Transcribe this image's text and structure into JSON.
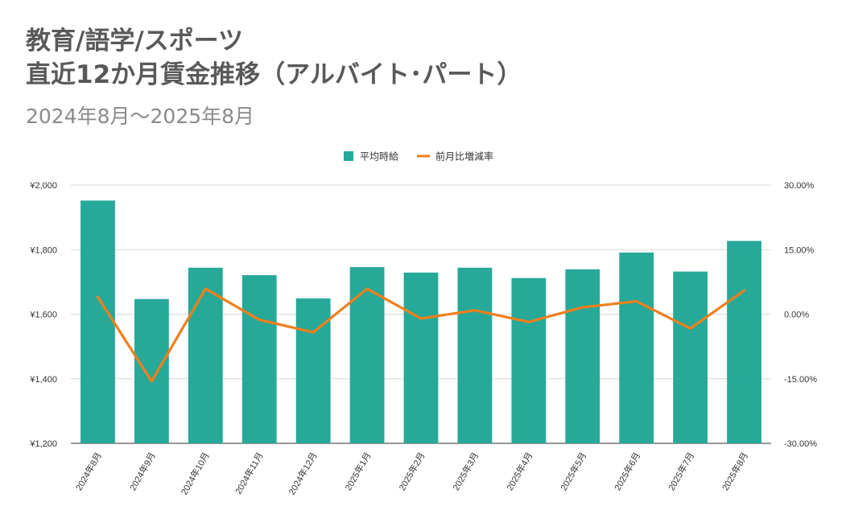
{
  "title_line1": "教育/語学/スポーツ",
  "title_line2": "直近12か月賃金推移（アルバイト･パート）",
  "subtitle": "2024年8月～2025年8月",
  "chart_data": {
    "type": "bar",
    "categories": [
      "2024年8月",
      "2024年9月",
      "2024年10月",
      "2024年11月",
      "2024年12月",
      "2025年1月",
      "2025年2月",
      "2025年3月",
      "2025年4月",
      "2025年5月",
      "2025年6月",
      "2025年7月",
      "2025年8月"
    ],
    "series": [
      {
        "name": "平均時給",
        "type": "bar",
        "axis": "left",
        "color": "#26A999",
        "values": [
          1952,
          1647,
          1744,
          1721,
          1649,
          1746,
          1729,
          1744,
          1712,
          1739,
          1791,
          1732,
          1827
        ]
      },
      {
        "name": "前月比増減率",
        "type": "line",
        "axis": "right",
        "color": "#F07F1B",
        "values": [
          4.0,
          -15.6,
          5.9,
          -1.3,
          -4.2,
          5.9,
          -1.0,
          0.9,
          -1.8,
          1.6,
          3.0,
          -3.3,
          5.5
        ]
      }
    ],
    "y_left": {
      "min": 1200,
      "max": 2000,
      "ticks": [
        "¥2,000",
        "¥1,800",
        "¥1,600",
        "¥1,400",
        "¥1,200"
      ]
    },
    "y_right": {
      "min": -30,
      "max": 30,
      "ticks": [
        "30.00%",
        "15.00%",
        "0.00%",
        "-15.00%",
        "-30.00%"
      ]
    },
    "legend_position": "top-center",
    "grid": true
  }
}
